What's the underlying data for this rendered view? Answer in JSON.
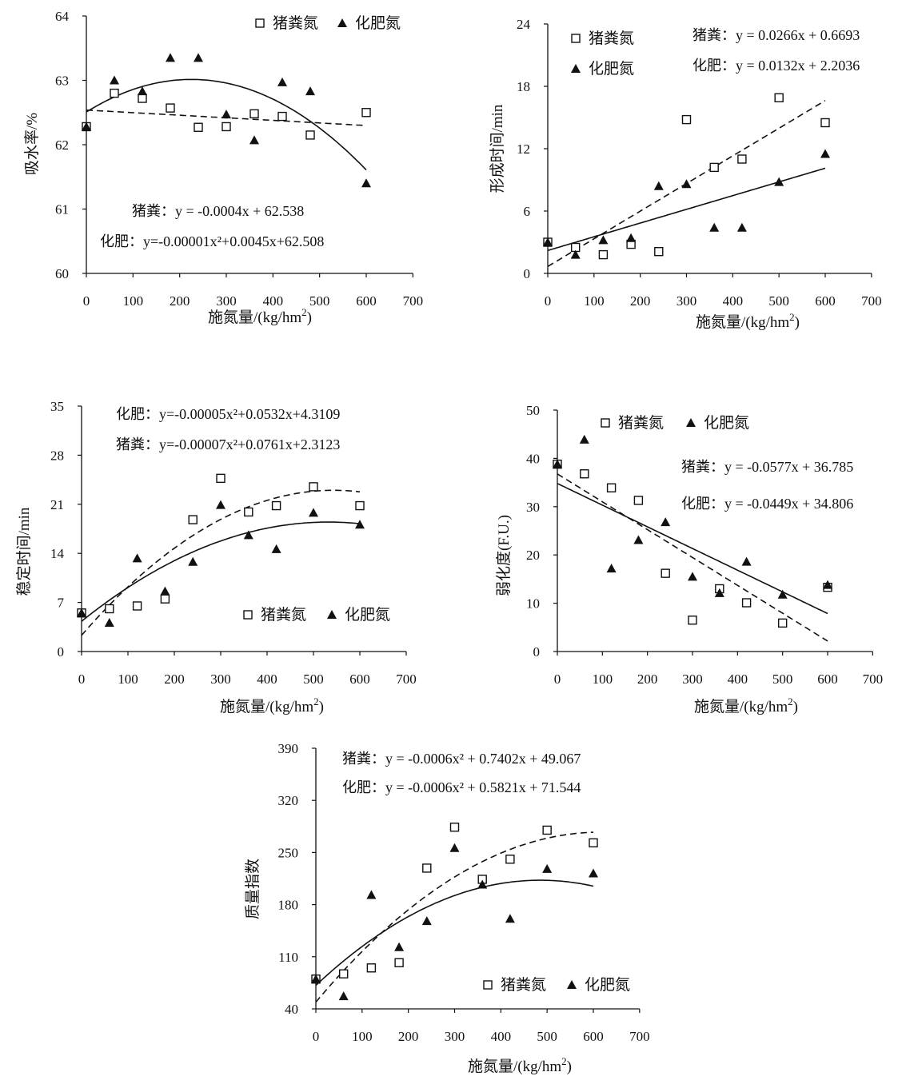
{
  "figure": {
    "legend_pig": "猪粪氮",
    "legend_fert": "化肥氮",
    "xlabel": "施氮量/(kg/hm",
    "xlabel_sup": "2",
    "xlabel_end": ")"
  },
  "chart_data": [
    {
      "id": "water",
      "type": "scatter",
      "title": "",
      "xlabel": "施氮量/(kg/hm²)",
      "ylabel": "吸水率/%",
      "xlim": [
        0,
        700
      ],
      "ylim": [
        60,
        64
      ],
      "xticks": [
        "0",
        "100",
        "200",
        "300",
        "400",
        "500",
        "600",
        "700"
      ],
      "yticks": [
        "60",
        "61",
        "62",
        "63",
        "64"
      ],
      "legend_position": "top-right",
      "series": [
        {
          "name": "猪粪氮",
          "marker": "open-square",
          "x": [
            0,
            60,
            120,
            180,
            240,
            300,
            360,
            420,
            480,
            600
          ],
          "y": [
            62.28,
            62.8,
            62.72,
            62.57,
            62.27,
            62.28,
            62.48,
            62.44,
            62.15,
            62.5
          ]
        },
        {
          "name": "化肥氮",
          "marker": "filled-triangle",
          "x": [
            0,
            60,
            120,
            180,
            240,
            300,
            360,
            420,
            480,
            600
          ],
          "y": [
            62.28,
            63.0,
            62.83,
            63.35,
            63.35,
            62.47,
            62.07,
            62.97,
            62.83,
            61.4
          ]
        }
      ],
      "fits": [
        {
          "series": "猪粪氮",
          "style": "dashed",
          "label": "猪粪：",
          "equation": "y = -0.0004x + 62.538"
        },
        {
          "series": "化肥氮",
          "style": "solid",
          "label": "化肥：",
          "equation": "y=-0.00001x²+0.0045x+62.508"
        }
      ]
    },
    {
      "id": "formation",
      "type": "scatter",
      "title": "",
      "xlabel": "施氮量/(kg/hm²)",
      "ylabel": "形成时间/min",
      "xlim": [
        0,
        700
      ],
      "ylim": [
        0,
        24
      ],
      "xticks": [
        "0",
        "100",
        "200",
        "300",
        "400",
        "500",
        "600",
        "700"
      ],
      "yticks": [
        "0",
        "6",
        "12",
        "18",
        "24"
      ],
      "legend_position": "top-left",
      "series": [
        {
          "name": "猪粪氮",
          "marker": "open-square",
          "x": [
            0,
            60,
            120,
            180,
            240,
            300,
            360,
            420,
            500,
            600
          ],
          "y": [
            3.0,
            2.5,
            1.8,
            2.8,
            2.1,
            14.8,
            10.2,
            11.0,
            16.9,
            14.5
          ]
        },
        {
          "name": "化肥氮",
          "marker": "filled-triangle",
          "x": [
            0,
            60,
            120,
            180,
            240,
            300,
            360,
            420,
            500,
            600
          ],
          "y": [
            3.0,
            1.8,
            3.2,
            3.4,
            8.4,
            8.6,
            4.4,
            4.4,
            8.8,
            11.5
          ]
        }
      ],
      "fits": [
        {
          "series": "猪粪氮",
          "style": "dashed",
          "label": "猪粪：",
          "equation": "y = 0.0266x + 0.6693"
        },
        {
          "series": "化肥氮",
          "style": "solid",
          "label": "化肥：",
          "equation": "y = 0.0132x + 2.2036"
        }
      ]
    },
    {
      "id": "stability",
      "type": "scatter",
      "title": "",
      "xlabel": "施氮量/(kg/hm²)",
      "ylabel": "稳定时间/min",
      "xlim": [
        0,
        700
      ],
      "ylim": [
        0,
        35
      ],
      "xticks": [
        "0",
        "100",
        "200",
        "300",
        "400",
        "500",
        "600",
        "700"
      ],
      "yticks": [
        "0",
        "7",
        "14",
        "21",
        "28",
        "35"
      ],
      "legend_position": "bottom-right",
      "series": [
        {
          "name": "猪粪氮",
          "marker": "open-square",
          "x": [
            0,
            60,
            120,
            180,
            240,
            300,
            360,
            420,
            500,
            600
          ],
          "y": [
            5.5,
            6.1,
            6.5,
            7.5,
            18.8,
            24.7,
            19.9,
            20.8,
            23.5,
            20.8
          ]
        },
        {
          "name": "化肥氮",
          "marker": "filled-triangle",
          "x": [
            0,
            60,
            120,
            180,
            240,
            300,
            360,
            420,
            500,
            600
          ],
          "y": [
            5.5,
            4.1,
            13.3,
            8.6,
            12.8,
            20.9,
            16.6,
            14.6,
            19.8,
            18.1
          ]
        }
      ],
      "fits": [
        {
          "series": "化肥氮",
          "style": "solid",
          "label": "化肥：",
          "equation": "y=-0.00005x²+0.0532x+4.3109"
        },
        {
          "series": "猪粪氮",
          "style": "dashed",
          "label": "猪粪：",
          "equation": "y=-0.00007x²+0.0761x+2.3123"
        }
      ]
    },
    {
      "id": "weakening",
      "type": "scatter",
      "title": "",
      "xlabel": "施氮量/(kg/hm²)",
      "ylabel": "弱化度(F.U.)",
      "xlim": [
        0,
        700
      ],
      "ylim": [
        0,
        50
      ],
      "xticks": [
        "0",
        "100",
        "200",
        "300",
        "400",
        "500",
        "600",
        "700"
      ],
      "yticks": [
        "0",
        "10",
        "20",
        "30",
        "40",
        "50"
      ],
      "legend_position": "top",
      "series": [
        {
          "name": "猪粪氮",
          "marker": "open-square",
          "x": [
            0,
            60,
            120,
            180,
            240,
            300,
            360,
            420,
            500,
            600
          ],
          "y": [
            38.8,
            36.8,
            33.9,
            31.3,
            16.2,
            6.5,
            13.0,
            10.1,
            5.9,
            13.3
          ]
        },
        {
          "name": "化肥氮",
          "marker": "filled-triangle",
          "x": [
            0,
            60,
            120,
            180,
            240,
            300,
            360,
            420,
            500,
            600
          ],
          "y": [
            38.8,
            43.9,
            17.2,
            23.1,
            26.8,
            15.5,
            12.1,
            18.6,
            11.8,
            13.8
          ]
        }
      ],
      "fits": [
        {
          "series": "猪粪氮",
          "style": "dashed",
          "label": "猪粪：",
          "equation": "y = -0.0577x + 36.785"
        },
        {
          "series": "化肥氮",
          "style": "solid",
          "label": "化肥：",
          "equation": "y = -0.0449x + 34.806"
        }
      ]
    },
    {
      "id": "quality",
      "type": "scatter",
      "title": "",
      "xlabel": "施氮量/(kg/hm²)",
      "ylabel": "质量指数",
      "xlim": [
        0,
        700
      ],
      "ylim": [
        40,
        390
      ],
      "xticks": [
        "0",
        "100",
        "200",
        "300",
        "400",
        "500",
        "600",
        "700"
      ],
      "yticks": [
        "40",
        "110",
        "180",
        "250",
        "320",
        "390"
      ],
      "legend_position": "bottom-right",
      "series": [
        {
          "name": "猪粪氮",
          "marker": "open-square",
          "x": [
            0,
            60,
            120,
            180,
            240,
            300,
            360,
            420,
            500,
            600
          ],
          "y": [
            80,
            87,
            95,
            102,
            229,
            284,
            214,
            241,
            280,
            263
          ]
        },
        {
          "name": "化肥氮",
          "marker": "filled-triangle",
          "x": [
            0,
            60,
            120,
            180,
            240,
            300,
            360,
            420,
            500,
            600
          ],
          "y": [
            80,
            57,
            193,
            123,
            158,
            256,
            207,
            161,
            228,
            222
          ]
        }
      ],
      "fits": [
        {
          "series": "猪粪氮",
          "style": "dashed",
          "label": "猪粪：",
          "equation": "y = -0.0006x² + 0.7402x + 49.067"
        },
        {
          "series": "化肥氮",
          "style": "solid",
          "label": "化肥：",
          "equation": "y = -0.0006x² + 0.5821x + 71.544"
        }
      ]
    }
  ]
}
